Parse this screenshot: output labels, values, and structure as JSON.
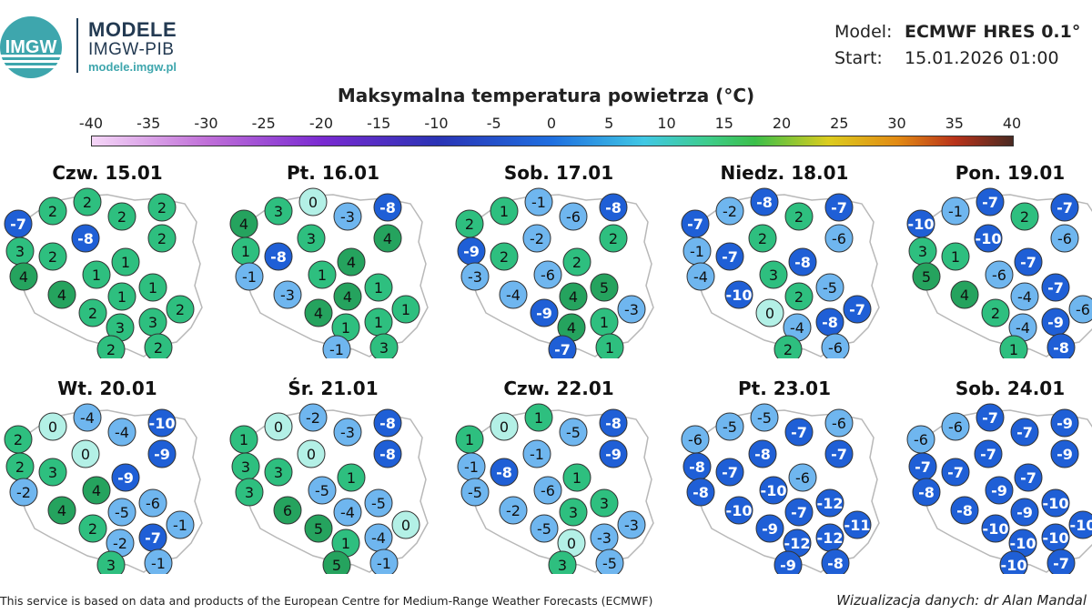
{
  "header": {
    "logo_text": "IMGW",
    "brand_title": "MODELE",
    "brand_subtitle": "IMGW-PIB",
    "brand_url": "modele.imgw.pl",
    "model_label": "Model:",
    "model_value": "ECMWF HRES 0.1°",
    "start_label": "Start:",
    "start_value": "15.01.2026 01:00"
  },
  "title": "Maksymalna temperatura powietrza (°C)",
  "scale": {
    "ticks": [
      "-40",
      "-35",
      "-30",
      "-25",
      "-20",
      "-15",
      "-10",
      "-5",
      "0",
      "5",
      "10",
      "15",
      "20",
      "25",
      "30",
      "35",
      "40"
    ],
    "min": -40,
    "max": 40
  },
  "colors": {
    "marker_cold": "#1f5fd6",
    "marker_cool": "#6fb6ef",
    "marker_zero": "#b3f0e6",
    "marker_warm": "#2ebf7f",
    "marker_warmer": "#25a35e",
    "map_fill": "#ffffff",
    "map_border": "#b8b8b8"
  },
  "panels": [
    {
      "day": "Czw. 15.01",
      "values": [
        2,
        2,
        2,
        -7,
        2,
        2,
        -8,
        3,
        2,
        1,
        1,
        4,
        1,
        1,
        4,
        2,
        3,
        3,
        2,
        2,
        2
      ]
    },
    {
      "day": "Pt. 16.01",
      "values": [
        3,
        0,
        -8,
        4,
        -3,
        4,
        3,
        1,
        -8,
        4,
        1,
        -1,
        4,
        1,
        -3,
        4,
        1,
        1,
        1,
        -1,
        3
      ]
    },
    {
      "day": "Sob. 17.01",
      "values": [
        1,
        -1,
        -8,
        2,
        -6,
        2,
        -2,
        -9,
        2,
        2,
        -6,
        -3,
        4,
        5,
        -4,
        -9,
        4,
        1,
        -3,
        -7,
        1
      ]
    },
    {
      "day": "Niedz. 18.01",
      "values": [
        -2,
        -8,
        -7,
        -7,
        2,
        -6,
        2,
        -1,
        -7,
        -8,
        3,
        -4,
        2,
        -5,
        -10,
        0,
        -4,
        -8,
        -7,
        2,
        -6
      ]
    },
    {
      "day": "Pon. 19.01",
      "values": [
        -1,
        -7,
        -7,
        -10,
        2,
        -6,
        -10,
        3,
        1,
        -7,
        -6,
        5,
        -4,
        -7,
        4,
        2,
        -4,
        -9,
        -6,
        1,
        -8
      ]
    },
    {
      "day": "Wt. 20.01",
      "values": [
        0,
        -4,
        -10,
        2,
        -4,
        -9,
        0,
        2,
        3,
        -9,
        4,
        -2,
        -5,
        -6,
        4,
        2,
        -2,
        -7,
        -1,
        3,
        -1
      ]
    },
    {
      "day": "Śr. 21.01",
      "values": [
        0,
        -2,
        -8,
        1,
        -3,
        -8,
        0,
        3,
        3,
        1,
        -5,
        3,
        -4,
        -5,
        6,
        5,
        1,
        -4,
        0,
        5,
        -1
      ]
    },
    {
      "day": "Czw. 22.01",
      "values": [
        0,
        1,
        -8,
        1,
        -5,
        -9,
        -1,
        -1,
        -8,
        1,
        -6,
        -5,
        3,
        3,
        -2,
        -5,
        0,
        -3,
        -3,
        3,
        -5
      ]
    },
    {
      "day": "Pt. 23.01",
      "values": [
        -5,
        -5,
        -6,
        -6,
        -7,
        -7,
        -8,
        -8,
        -7,
        -6,
        -10,
        -8,
        -7,
        -12,
        -10,
        -9,
        -12,
        -12,
        -11,
        -9,
        -8
      ]
    },
    {
      "day": "Sob. 24.01",
      "values": [
        -6,
        -7,
        -9,
        -6,
        -7,
        -9,
        -7,
        -7,
        -7,
        -7,
        -9,
        -8,
        -9,
        -10,
        -8,
        -10,
        -10,
        -10,
        -10,
        -10,
        -7
      ]
    }
  ],
  "footer": {
    "left": "This service is based on data and products of the European Centre for Medium-Range Weather Forecasts (ECMWF)",
    "right": "Wizualizacja danych: dr Alan Mandal"
  }
}
